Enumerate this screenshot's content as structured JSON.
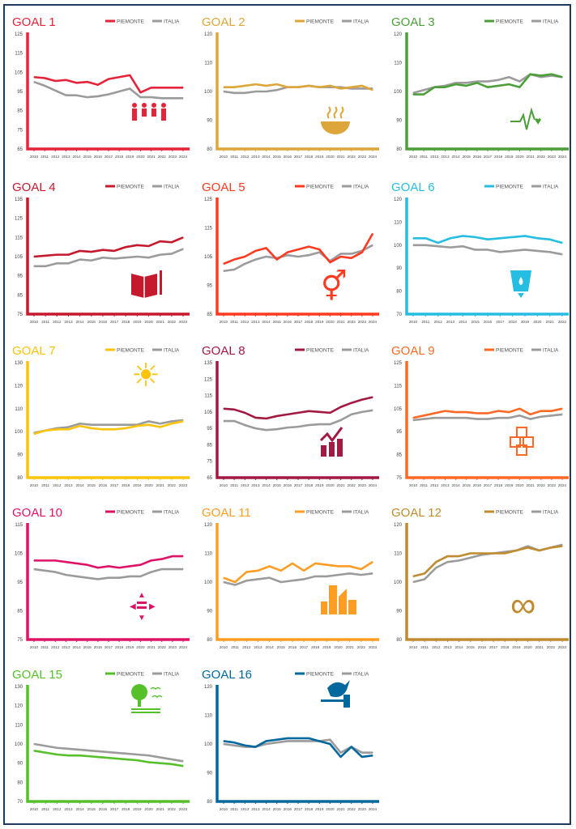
{
  "legend": {
    "piemonte": "PIEMONTE",
    "italia": "ITALIA"
  },
  "italia_color": "#9b9b9b",
  "chart_data": [
    {
      "type": "line",
      "title": "GOAL 1",
      "color": "#e5243b",
      "icon": "family-icon",
      "ylim": [
        65,
        125
      ],
      "yticks": [
        65,
        75,
        85,
        95,
        105,
        115,
        125
      ],
      "x": [
        2010,
        2011,
        2012,
        2013,
        2014,
        2015,
        2016,
        2017,
        2018,
        2019,
        2020,
        2021,
        2022,
        2023,
        2024
      ],
      "series": [
        {
          "name": "PIEMONTE",
          "values": [
            102.5,
            102,
            100.5,
            101,
            99.5,
            100,
            98.5,
            101.5,
            102.5,
            103.5,
            94.5,
            97,
            97,
            97,
            97
          ]
        },
        {
          "name": "ITALIA",
          "values": [
            100,
            98,
            95.5,
            93,
            93,
            92,
            92.5,
            93.5,
            95,
            96.5,
            92,
            92,
            91.5,
            91.5,
            91.5
          ]
        }
      ]
    },
    {
      "type": "line",
      "title": "GOAL 2",
      "color": "#dda63a",
      "icon": "bowl-icon",
      "ylim": [
        80,
        120
      ],
      "yticks": [
        80,
        90,
        100,
        110,
        120
      ],
      "x": [
        2010,
        2011,
        2012,
        2013,
        2014,
        2015,
        2016,
        2017,
        2018,
        2019,
        2020,
        2021,
        2022,
        2023,
        2024
      ],
      "series": [
        {
          "name": "PIEMONTE",
          "values": [
            101.5,
            101.5,
            102,
            102.5,
            102,
            102.5,
            101.5,
            101.5,
            102,
            101.5,
            102,
            101,
            101.5,
            102,
            100.5
          ]
        },
        {
          "name": "ITALIA",
          "values": [
            100,
            99.5,
            99.5,
            100,
            100,
            100.5,
            101.5,
            101.5,
            102,
            101.5,
            101.5,
            101.5,
            101,
            101,
            101
          ]
        }
      ]
    },
    {
      "type": "line",
      "title": "GOAL 3",
      "color": "#4c9f38",
      "icon": "heartbeat-icon",
      "ylim": [
        80,
        120
      ],
      "yticks": [
        80,
        90,
        100,
        110,
        120
      ],
      "x": [
        2010,
        2011,
        2012,
        2013,
        2014,
        2015,
        2016,
        2017,
        2018,
        2019,
        2020,
        2021,
        2022,
        2023,
        2024
      ],
      "series": [
        {
          "name": "PIEMONTE",
          "values": [
            99,
            99,
            101.5,
            101.5,
            102.5,
            102,
            103,
            101.5,
            102,
            102.5,
            101.5,
            106,
            105.5,
            106,
            105
          ]
        },
        {
          "name": "ITALIA",
          "values": [
            99.5,
            100.5,
            101.5,
            102,
            103,
            103,
            103.5,
            103.5,
            104,
            105,
            103.5,
            106,
            105,
            105.5,
            105
          ]
        }
      ]
    },
    {
      "type": "line",
      "title": "GOAL 4",
      "color": "#c5192d",
      "icon": "book-icon",
      "ylim": [
        75,
        135
      ],
      "yticks": [
        75,
        85,
        95,
        105,
        115,
        125,
        135
      ],
      "x": [
        2010,
        2011,
        2012,
        2013,
        2014,
        2015,
        2016,
        2017,
        2018,
        2019,
        2020,
        2021,
        2022,
        2023
      ],
      "series": [
        {
          "name": "PIEMONTE",
          "values": [
            105,
            105.5,
            106,
            106,
            108,
            107.5,
            108.5,
            108,
            110,
            111,
            110.5,
            113,
            112.5,
            115
          ]
        },
        {
          "name": "ITALIA",
          "values": [
            100,
            100,
            101.5,
            101.5,
            103.5,
            103,
            104.5,
            104,
            104.5,
            105,
            104.5,
            106,
            106.5,
            109
          ]
        }
      ]
    },
    {
      "type": "line",
      "title": "GOAL 5",
      "color": "#ff3a21",
      "icon": "gender-equality-icon",
      "ylim": [
        85,
        125
      ],
      "yticks": [
        85,
        95,
        105,
        115,
        125
      ],
      "x": [
        2010,
        2011,
        2012,
        2013,
        2014,
        2015,
        2016,
        2017,
        2018,
        2019,
        2020,
        2021,
        2022,
        2023,
        2024
      ],
      "series": [
        {
          "name": "PIEMONTE",
          "values": [
            102.5,
            104,
            105,
            107,
            108,
            104,
            106.5,
            107.5,
            108.5,
            107.5,
            103,
            105,
            104.5,
            106.5,
            113
          ]
        },
        {
          "name": "ITALIA",
          "values": [
            100,
            100.5,
            102.5,
            104,
            105,
            104.5,
            105.5,
            105,
            105.5,
            106.5,
            103.5,
            106,
            106,
            107,
            109
          ]
        }
      ]
    },
    {
      "type": "line",
      "title": "GOAL 6",
      "color": "#26bde2",
      "icon": "water-icon",
      "ylim": [
        70,
        120
      ],
      "yticks": [
        70,
        80,
        90,
        100,
        110,
        120
      ],
      "x": [
        2010,
        2011,
        2012,
        2013,
        2014,
        2015,
        2016,
        2017,
        2018,
        2019,
        2020,
        2021,
        2022
      ],
      "series": [
        {
          "name": "PIEMONTE",
          "values": [
            103,
            103,
            101,
            103,
            104,
            103.5,
            102.5,
            103,
            103.5,
            104,
            103,
            102.5,
            101
          ]
        },
        {
          "name": "ITALIA",
          "values": [
            100,
            100,
            99.5,
            99,
            99.5,
            98,
            98,
            97,
            97.5,
            98,
            97.5,
            97,
            96
          ]
        }
      ]
    },
    {
      "type": "line",
      "title": "GOAL 7",
      "color": "#fcc30b",
      "icon": "sun-power-icon",
      "ylim": [
        80,
        130
      ],
      "yticks": [
        80,
        90,
        100,
        110,
        120,
        130
      ],
      "x": [
        2010,
        2011,
        2012,
        2013,
        2014,
        2015,
        2016,
        2017,
        2018,
        2019,
        2020,
        2021,
        2022,
        2023
      ],
      "series": [
        {
          "name": "PIEMONTE",
          "values": [
            99,
            100.5,
            101,
            101,
            102.5,
            101.5,
            101,
            101,
            101.5,
            102.5,
            103,
            102,
            103.5,
            104.5
          ]
        },
        {
          "name": "ITALIA",
          "values": [
            99.5,
            100.5,
            101.5,
            102,
            103.5,
            103,
            103,
            103,
            103,
            103,
            104.5,
            103.5,
            104.5,
            105
          ]
        }
      ]
    },
    {
      "type": "line",
      "title": "GOAL 8",
      "color": "#a21942",
      "icon": "growth-chart-icon",
      "ylim": [
        65,
        135
      ],
      "yticks": [
        65,
        75,
        85,
        95,
        105,
        115,
        125,
        135
      ],
      "x": [
        2010,
        2011,
        2012,
        2013,
        2014,
        2015,
        2016,
        2017,
        2018,
        2019,
        2020,
        2021,
        2022,
        2023,
        2024
      ],
      "series": [
        {
          "name": "PIEMONTE",
          "values": [
            107,
            106.5,
            104.5,
            101.5,
            101,
            102.5,
            103.5,
            104.5,
            105.5,
            105,
            104.5,
            108,
            110.5,
            112.5,
            114
          ]
        },
        {
          "name": "ITALIA",
          "values": [
            99.5,
            99.5,
            97,
            95,
            94,
            94.5,
            95.5,
            96,
            97,
            97.5,
            97.5,
            100,
            103.5,
            105,
            106
          ]
        }
      ]
    },
    {
      "type": "line",
      "title": "GOAL 9",
      "color": "#fd6925",
      "icon": "cubes-icon",
      "ylim": [
        75,
        125
      ],
      "yticks": [
        75,
        85,
        95,
        105,
        115,
        125
      ],
      "x": [
        2010,
        2011,
        2012,
        2013,
        2014,
        2015,
        2016,
        2017,
        2018,
        2019,
        2020,
        2021,
        2022,
        2023,
        2024
      ],
      "series": [
        {
          "name": "PIEMONTE",
          "values": [
            101,
            102,
            103,
            104,
            103.5,
            103.5,
            103,
            103,
            104,
            103.5,
            105,
            102.5,
            104,
            104,
            105
          ]
        },
        {
          "name": "ITALIA",
          "values": [
            100,
            100.5,
            101,
            101,
            101,
            101,
            100.5,
            100.5,
            101,
            101,
            102,
            100.5,
            101.5,
            102,
            102.5
          ]
        }
      ]
    },
    {
      "type": "line",
      "title": "GOAL 10",
      "color": "#dd1367",
      "icon": "equality-arrows-icon",
      "ylim": [
        75,
        115
      ],
      "yticks": [
        75,
        85,
        95,
        105,
        115
      ],
      "x": [
        2010,
        2011,
        2012,
        2013,
        2014,
        2015,
        2016,
        2017,
        2018,
        2019,
        2020,
        2021,
        2022,
        2023,
        2024
      ],
      "series": [
        {
          "name": "PIEMONTE",
          "values": [
            102.5,
            102.5,
            102.5,
            102,
            101.5,
            101,
            100,
            100.5,
            100,
            100.5,
            101,
            102.5,
            103,
            104,
            104
          ]
        },
        {
          "name": "ITALIA",
          "values": [
            99.5,
            99,
            98.5,
            97.5,
            97,
            96.5,
            96,
            96.5,
            96.5,
            97,
            97,
            98.5,
            99.5,
            99.5,
            99.5
          ]
        }
      ]
    },
    {
      "type": "line",
      "title": "GOAL 11",
      "color": "#fd9d24",
      "icon": "city-buildings-icon",
      "ylim": [
        80,
        120
      ],
      "yticks": [
        80,
        90,
        100,
        110,
        120
      ],
      "x": [
        2010,
        2011,
        2012,
        2013,
        2014,
        2015,
        2016,
        2017,
        2018,
        2019,
        2020,
        2021,
        2022,
        2023
      ],
      "series": [
        {
          "name": "PIEMONTE",
          "values": [
            101.5,
            100,
            103.5,
            104,
            105.5,
            104,
            106.5,
            104,
            106.5,
            106,
            105.5,
            105.5,
            104.5,
            107
          ]
        },
        {
          "name": "ITALIA",
          "values": [
            100,
            99,
            100.5,
            101,
            101.5,
            100,
            100.5,
            101,
            102,
            102,
            102.5,
            103,
            102.5,
            103
          ]
        }
      ]
    },
    {
      "type": "line",
      "title": "GOAL 12",
      "color": "#bf8b2e",
      "icon": "infinity-icon",
      "ylim": [
        80,
        120
      ],
      "yticks": [
        80,
        90,
        100,
        110,
        120
      ],
      "x": [
        2010,
        2011,
        2012,
        2013,
        2014,
        2015,
        2016,
        2017,
        2018,
        2019,
        2020,
        2021,
        2022,
        2023
      ],
      "series": [
        {
          "name": "PIEMONTE",
          "values": [
            102,
            103,
            107,
            109,
            109,
            110,
            110,
            110,
            110,
            111,
            112,
            111,
            112,
            112.5
          ]
        },
        {
          "name": "ITALIA",
          "values": [
            100,
            101,
            105,
            107,
            107.5,
            108.5,
            109.5,
            110,
            110.5,
            111,
            112.5,
            111,
            112,
            113
          ]
        }
      ]
    },
    {
      "type": "line",
      "title": "GOAL 15",
      "color": "#56c02b",
      "icon": "tree-birds-icon",
      "ylim": [
        70,
        130
      ],
      "yticks": [
        70,
        80,
        90,
        100,
        110,
        120,
        130
      ],
      "x": [
        2010,
        2011,
        2012,
        2013,
        2014,
        2015,
        2016,
        2017,
        2018,
        2019,
        2020,
        2021,
        2022,
        2023
      ],
      "series": [
        {
          "name": "PIEMONTE",
          "values": [
            96.5,
            95.5,
            94.5,
            94,
            94,
            93.5,
            93,
            92.5,
            92,
            91.5,
            90.5,
            90,
            89.5,
            88.5
          ]
        },
        {
          "name": "ITALIA",
          "values": [
            100,
            99,
            98,
            97.5,
            97,
            96.5,
            96,
            95.5,
            95,
            94.5,
            94,
            93,
            92,
            91
          ]
        }
      ]
    },
    {
      "type": "line",
      "title": "GOAL 16",
      "color": "#00689d",
      "icon": "dove-gavel-icon",
      "ylim": [
        80,
        120
      ],
      "yticks": [
        80,
        90,
        100,
        110,
        120
      ],
      "x": [
        2010,
        2011,
        2012,
        2013,
        2014,
        2015,
        2016,
        2017,
        2018,
        2019,
        2020,
        2021,
        2022,
        2023,
        2024
      ],
      "series": [
        {
          "name": "PIEMONTE",
          "values": [
            101,
            100.5,
            99.5,
            99,
            101,
            101.5,
            102,
            102,
            102,
            101,
            100,
            95.5,
            99,
            95.5,
            96
          ]
        },
        {
          "name": "ITALIA",
          "values": [
            100,
            99.5,
            99,
            99,
            100,
            100.5,
            101,
            101,
            101,
            101,
            101.5,
            97,
            99,
            97,
            97
          ]
        }
      ]
    }
  ]
}
